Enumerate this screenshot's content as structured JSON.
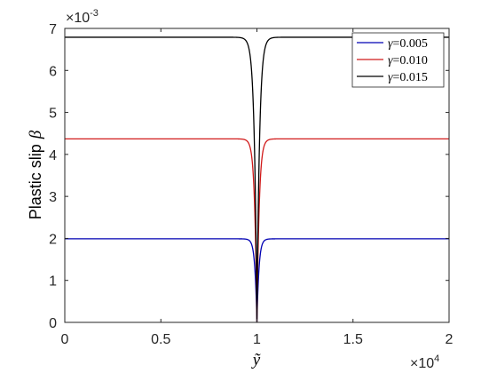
{
  "chart_data": {
    "type": "line",
    "title": "",
    "xlabel": "ỹ",
    "ylabel": "Plastic slip",
    "ylabel_symbol": "β",
    "xlim": [
      0,
      20000
    ],
    "ylim": [
      0,
      0.007
    ],
    "x_exponent": {
      "base": "×10",
      "power": "4"
    },
    "y_exponent": {
      "base": "×10",
      "power": "-3"
    },
    "xticks": [
      0,
      5000,
      10000,
      15000,
      20000
    ],
    "xtick_labels": [
      "0",
      "0.5",
      "1",
      "1.5",
      "2"
    ],
    "yticks": [
      0,
      0.001,
      0.002,
      0.003,
      0.004,
      0.005,
      0.006,
      0.007
    ],
    "ytick_labels": [
      "0",
      "1",
      "2",
      "3",
      "4",
      "5",
      "6",
      "7"
    ],
    "grid": false,
    "legend_position": "top-right",
    "dip_center": 10000,
    "series": [
      {
        "name": "γ=0.005",
        "legend_symbol": "γ",
        "legend_value": "=0.005",
        "color": "#0000b3",
        "plateau": 0.00199,
        "minimum": 0.0,
        "dip_half_width": 150
      },
      {
        "name": "γ=0.010",
        "legend_symbol": "γ",
        "legend_value": "=0.010",
        "color": "#d11a1a",
        "plateau": 0.00437,
        "minimum": 0.0,
        "dip_half_width": 170
      },
      {
        "name": "γ=0.015",
        "legend_symbol": "γ",
        "legend_value": "=0.015",
        "color": "#000000",
        "plateau": 0.00679,
        "minimum": 0.0,
        "dip_half_width": 190
      }
    ]
  }
}
